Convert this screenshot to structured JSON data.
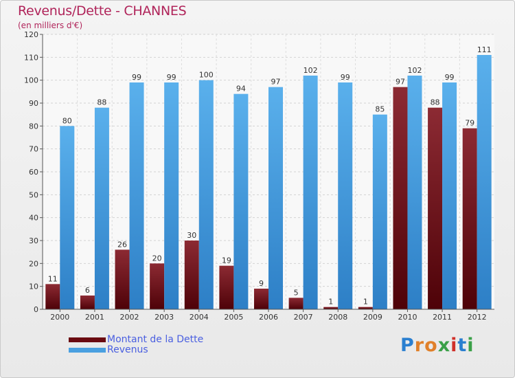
{
  "title": "Revenus/Dette - CHANNES",
  "subtitle": "(en milliers d'€)",
  "logo": "Proxiti",
  "colors": {
    "dette": "#7a1e28",
    "revenus": "#4aa0e0",
    "title": "#b0245a",
    "legend_text": "#4a5fe0"
  },
  "legend": [
    {
      "label": "Montant de la Dette",
      "color": "#6a0a10"
    },
    {
      "label": "Revenus",
      "color": "#4aa0e0"
    }
  ],
  "chart_data": {
    "type": "bar",
    "title": "Revenus/Dette - CHANNES",
    "ylabel": "(en milliers d'€)",
    "xlabel": "",
    "ylim": [
      0,
      120
    ],
    "yticks": [
      0,
      10,
      20,
      30,
      40,
      50,
      60,
      70,
      80,
      90,
      100,
      110,
      120
    ],
    "grid": true,
    "legend_position": "bottom-left",
    "categories": [
      "2000",
      "2001",
      "2002",
      "2003",
      "2004",
      "2005",
      "2006",
      "2007",
      "2008",
      "2009",
      "2010",
      "2011",
      "2012"
    ],
    "series": [
      {
        "name": "Montant de la Dette",
        "values": [
          11,
          6,
          26,
          20,
          30,
          19,
          9,
          5,
          1,
          1,
          97,
          88,
          79
        ]
      },
      {
        "name": "Revenus",
        "values": [
          80,
          88,
          99,
          99,
          100,
          94,
          97,
          102,
          99,
          85,
          102,
          99,
          111
        ]
      }
    ]
  }
}
